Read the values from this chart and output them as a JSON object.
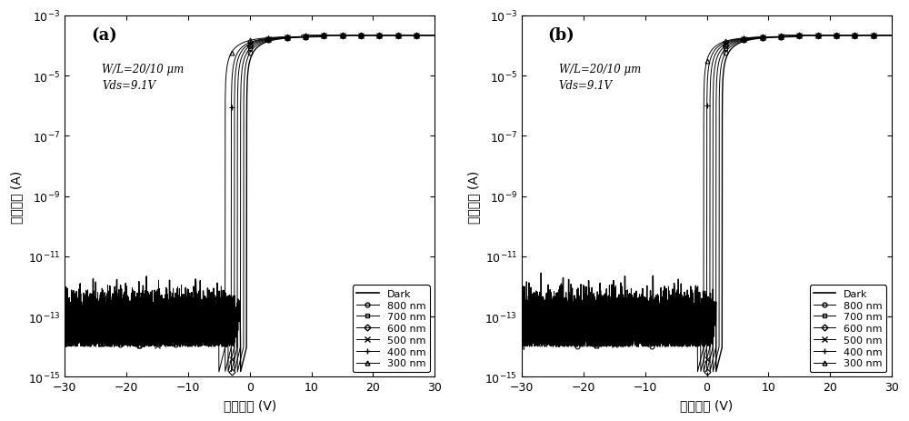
{
  "title_a": "(a)",
  "title_b": "(b)",
  "annotation_line1": "W/L=20/10 μm",
  "annotation_line2": "Vds=9.1V",
  "xlabel": "栋极电压 (V)",
  "ylabel": "漏极电流 (A)",
  "xlim": [
    -30,
    30
  ],
  "ylim_log_min": -15,
  "ylim_log_max": -3,
  "xticks": [
    -30,
    -20,
    -10,
    0,
    10,
    20,
    30
  ],
  "legend_labels": [
    "Dark",
    "800 nm",
    "700 nm",
    "600 nm",
    "500 nm",
    "400 nm",
    "300 nm"
  ],
  "panel_a_dark_vth": -0.5,
  "panel_a_light_vths": [
    -1.0,
    -1.5,
    -2.0,
    -2.5,
    -3.0,
    -4.0
  ],
  "panel_b_dark_vth": 2.5,
  "panel_b_light_vths": [
    2.0,
    1.5,
    1.0,
    0.5,
    0.0,
    -0.5
  ],
  "subthreshold_swing": 1.2,
  "on_current": 0.0002,
  "noise_floor": 1e-14,
  "background_color": "#ffffff"
}
